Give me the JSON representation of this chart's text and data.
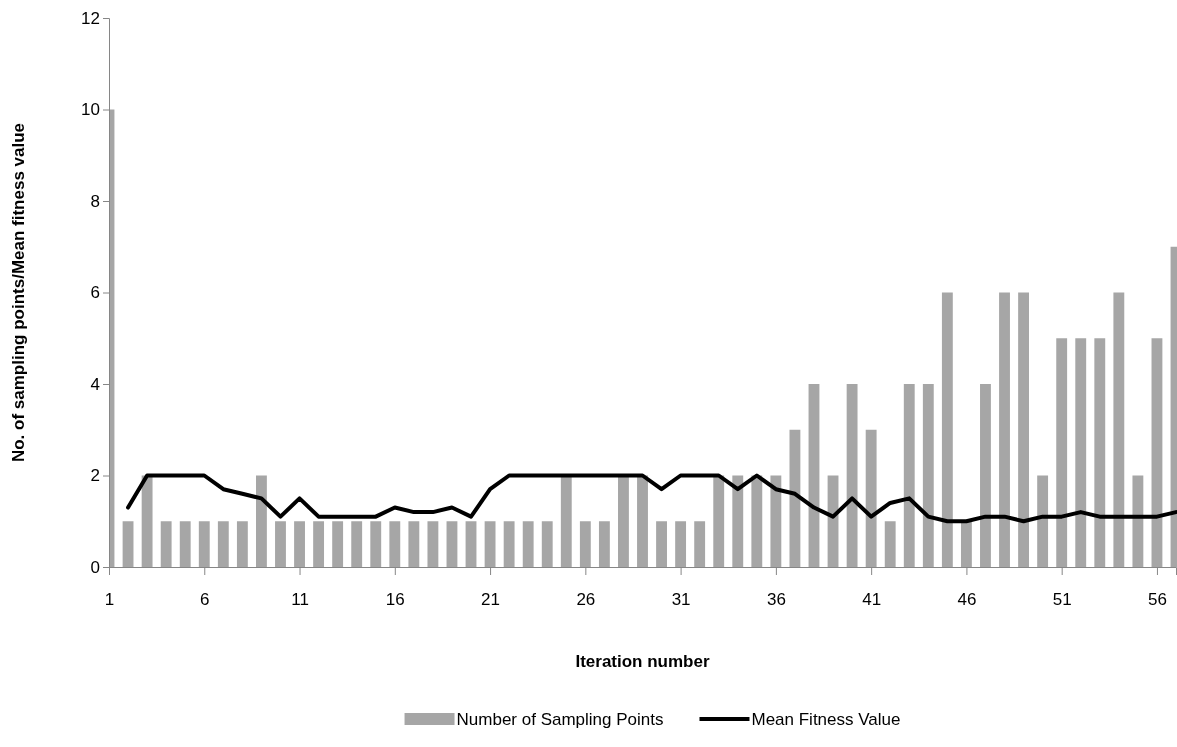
{
  "chart_data": {
    "type": "bar",
    "xlabel": "Iteration number",
    "ylabel": "No. of sampling points/Mean fitness value",
    "x": [
      1,
      2,
      3,
      4,
      5,
      6,
      7,
      8,
      9,
      10,
      11,
      12,
      13,
      14,
      15,
      16,
      17,
      18,
      19,
      20,
      21,
      22,
      23,
      24,
      25,
      26,
      27,
      28,
      29,
      30,
      31,
      32,
      33,
      34,
      35,
      36,
      37,
      38,
      39,
      40,
      41,
      42,
      43,
      44,
      45,
      46,
      47,
      48,
      49,
      50,
      51,
      52,
      53,
      54,
      55,
      56,
      57
    ],
    "xlim": [
      1,
      57
    ],
    "xticks": [
      1,
      6,
      11,
      16,
      21,
      26,
      31,
      36,
      41,
      46,
      51,
      56
    ],
    "ylim": [
      0,
      12
    ],
    "yticks": [
      0,
      2,
      4,
      6,
      8,
      10,
      12
    ],
    "grid": false,
    "legend": "bottom",
    "series": [
      {
        "name": "Number of Sampling Points",
        "color": "#a6a6a6",
        "values": [
          10,
          1,
          2,
          1,
          1,
          1,
          1,
          1,
          2,
          1,
          1,
          1,
          1,
          1,
          1,
          1,
          1,
          1,
          1,
          1,
          1,
          1,
          1,
          1,
          2,
          1,
          1,
          2,
          2,
          1,
          1,
          1,
          2,
          2,
          2,
          2,
          3,
          4,
          2,
          4,
          3,
          1,
          4,
          4,
          6,
          1,
          4,
          6,
          6,
          2,
          5,
          5,
          5,
          6,
          2,
          5,
          7
        ]
      },
      {
        "name": "Mean Fitness Value",
        "type": "line",
        "color": "#000000",
        "values": [
          null,
          1.3,
          2,
          2,
          2,
          2,
          1.7,
          1.6,
          1.5,
          1.1,
          1.5,
          1.1,
          1.1,
          1.1,
          1.1,
          1.3,
          1.2,
          1.2,
          1.3,
          1.1,
          1.7,
          2,
          2,
          2,
          2,
          2,
          2,
          2,
          2,
          1.7,
          2,
          2,
          2,
          1.7,
          2,
          1.7,
          1.6,
          1.3,
          1.1,
          1.5,
          1.1,
          1.4,
          1.5,
          1.1,
          1.0,
          1.0,
          1.1,
          1.1,
          1.0,
          1.1,
          1.1,
          1.2,
          1.1,
          1.1,
          1.1,
          1.1,
          1.2
        ]
      }
    ]
  }
}
